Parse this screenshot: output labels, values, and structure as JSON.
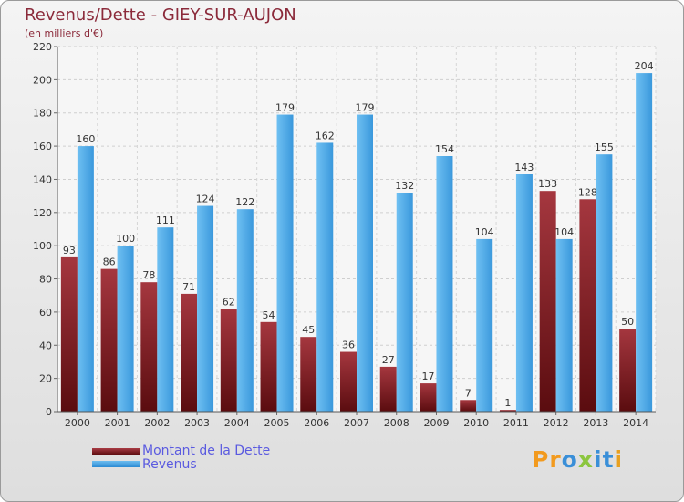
{
  "chart_data": {
    "type": "bar",
    "title": "Revenus/Dette - GIEY-SUR-AUJON",
    "subtitle": "(en milliers d'€)",
    "categories": [
      "2000",
      "2001",
      "2002",
      "2003",
      "2004",
      "2005",
      "2006",
      "2007",
      "2008",
      "2009",
      "2010",
      "2011",
      "2012",
      "2013",
      "2014"
    ],
    "series": [
      {
        "name": "Montant de la Dette",
        "color": "#7a1a22",
        "values": [
          93,
          86,
          78,
          71,
          62,
          54,
          45,
          36,
          27,
          17,
          7,
          1,
          133,
          128,
          50
        ]
      },
      {
        "name": "Revenus",
        "color": "#4ea6e6",
        "values": [
          160,
          100,
          111,
          124,
          122,
          179,
          162,
          179,
          132,
          154,
          104,
          143,
          104,
          155,
          204
        ]
      }
    ],
    "ylim": [
      0,
      220
    ],
    "yticks": [
      0,
      20,
      40,
      60,
      80,
      100,
      120,
      140,
      160,
      180,
      200,
      220
    ],
    "grid": true,
    "legend_position": "bottom-left"
  },
  "logo": {
    "text": "Proxiti",
    "letters": [
      {
        "ch": "P",
        "color": "#f29a1e"
      },
      {
        "ch": "r",
        "color": "#f29a1e"
      },
      {
        "ch": "o",
        "color": "#3a8fd8"
      },
      {
        "ch": "x",
        "color": "#8cc63f"
      },
      {
        "ch": "i",
        "color": "#3a8fd8"
      },
      {
        "ch": "t",
        "color": "#3a8fd8"
      },
      {
        "ch": "i",
        "color": "#e8a020"
      }
    ]
  }
}
